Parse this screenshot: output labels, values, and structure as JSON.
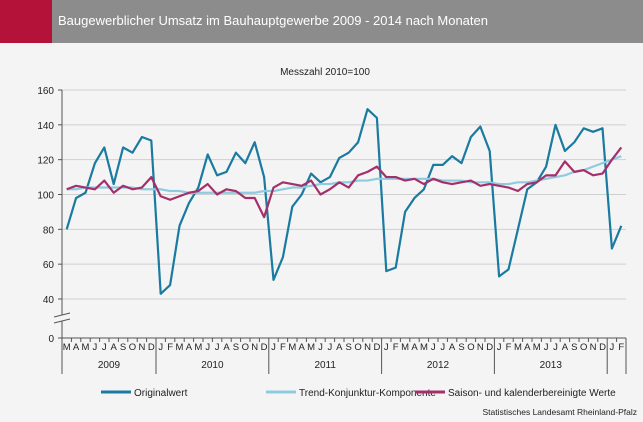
{
  "header": {
    "title": "Baugewerblicher Umsatz im Bauhauptgewerbe 2009 - 2014 nach Monaten",
    "accent_color": "#b5123a",
    "band_color": "#8c8c8c"
  },
  "source": "Statistisches Landesamt Rheinland-Pfalz",
  "chart_data": {
    "type": "line",
    "subtitle": "Messzahl 2010=100",
    "x_month_labels": [
      "M",
      "A",
      "M",
      "J",
      "J",
      "A",
      "S",
      "O",
      "N",
      "D",
      "J",
      "F",
      "M",
      "A",
      "M",
      "J",
      "J",
      "A",
      "S",
      "O",
      "N",
      "D",
      "J",
      "F",
      "M",
      "A",
      "M",
      "J",
      "J",
      "A",
      "S",
      "O",
      "N",
      "D",
      "J",
      "F",
      "M",
      "A",
      "M",
      "J",
      "J",
      "A",
      "S",
      "O",
      "N",
      "D",
      "J",
      "F",
      "M",
      "A",
      "M",
      "J",
      "J",
      "A",
      "S",
      "O",
      "N",
      "D",
      "J",
      "F"
    ],
    "years": [
      {
        "label": "2009",
        "start": 0,
        "end": 10
      },
      {
        "label": "2010",
        "start": 10,
        "end": 22
      },
      {
        "label": "2011",
        "start": 22,
        "end": 34
      },
      {
        "label": "2012",
        "start": 34,
        "end": 46
      },
      {
        "label": "2013",
        "start": 46,
        "end": 58
      }
    ],
    "ylim": [
      40,
      160
    ],
    "yticks": [
      40,
      60,
      80,
      100,
      120,
      140,
      160
    ],
    "y_zero_label": "0",
    "axis_break": true,
    "grid": true,
    "legend_position": "bottom",
    "series": [
      {
        "name": "Originalwert",
        "color": "#1a7aa0",
        "values": [
          80,
          98,
          101,
          118,
          127,
          106,
          127,
          124,
          133,
          131,
          43,
          48,
          82,
          95,
          104,
          123,
          111,
          113,
          124,
          118,
          130,
          110,
          51,
          64,
          93,
          100,
          112,
          107,
          110,
          121,
          124,
          130,
          149,
          144,
          56,
          58,
          90,
          98,
          103,
          117,
          117,
          122,
          118,
          133,
          139,
          125,
          53,
          57,
          80,
          103,
          107,
          116,
          140,
          125,
          130,
          138,
          136,
          138,
          69,
          82
        ]
      },
      {
        "name": "Trend-Konjunktur-Komponente",
        "color": "#8ecbe0",
        "values": [
          103,
          103,
          104,
          104,
          104,
          104,
          104,
          104,
          103,
          103,
          103,
          102,
          102,
          101,
          101,
          101,
          101,
          101,
          101,
          101,
          101,
          102,
          102,
          103,
          104,
          104,
          105,
          106,
          106,
          107,
          107,
          108,
          108,
          109,
          109,
          109,
          109,
          109,
          109,
          109,
          108,
          108,
          108,
          107,
          107,
          107,
          106,
          106,
          107,
          107,
          108,
          109,
          110,
          111,
          113,
          114,
          116,
          118,
          120,
          122
        ]
      },
      {
        "name": "Saison- und kalenderbereinigte Werte",
        "color": "#a3306a",
        "values": [
          103,
          105,
          104,
          103,
          108,
          101,
          105,
          103,
          104,
          110,
          99,
          97,
          99,
          101,
          102,
          106,
          100,
          103,
          102,
          98,
          98,
          87,
          104,
          107,
          106,
          105,
          108,
          100,
          103,
          107,
          104,
          111,
          113,
          116,
          110,
          110,
          108,
          109,
          106,
          109,
          107,
          106,
          107,
          108,
          105,
          106,
          105,
          104,
          102,
          106,
          107,
          111,
          111,
          119,
          113,
          114,
          111,
          112,
          120,
          127
        ]
      }
    ]
  }
}
